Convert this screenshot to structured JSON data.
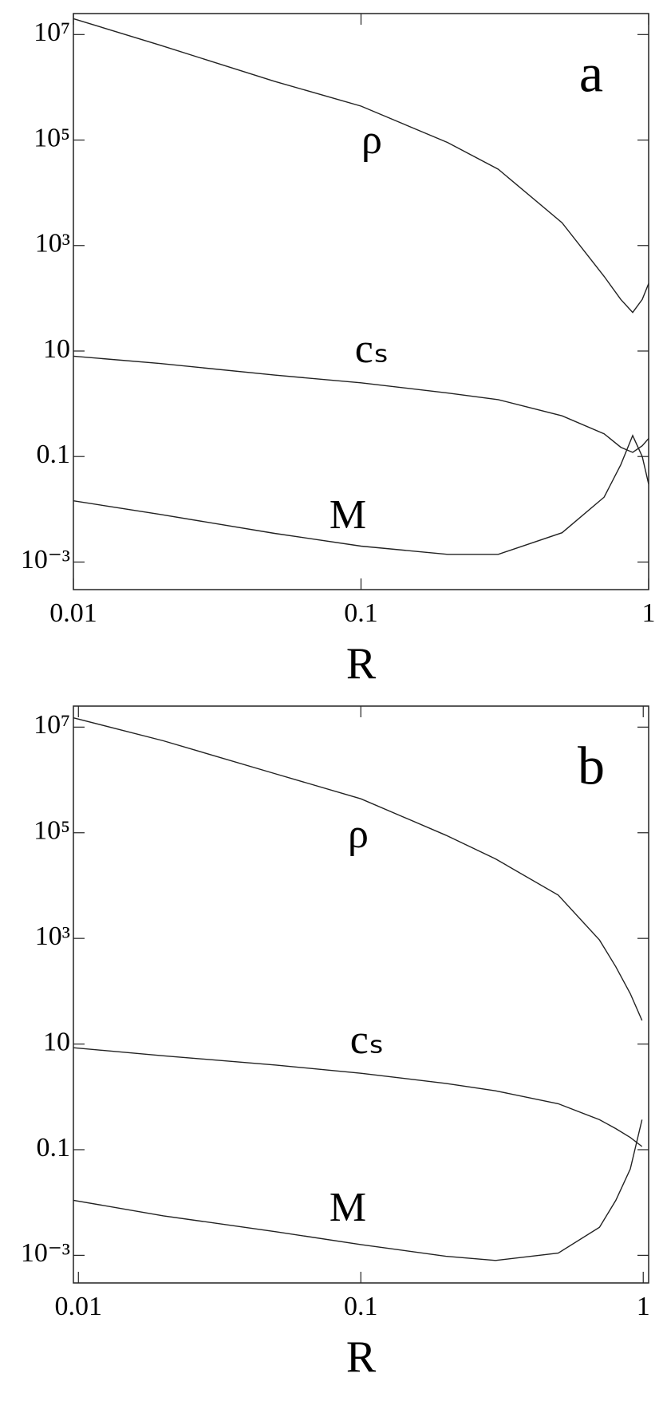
{
  "chart_data": [
    {
      "type": "line",
      "panel_label": "a",
      "x_label": "R",
      "xscale": "log",
      "yscale": "log",
      "xlim": [
        0.01,
        1
      ],
      "ylim": [
        0.0003,
        25000000
      ],
      "xticks": [
        0.01,
        0.1,
        1
      ],
      "yticks": [
        {
          "value": 10000000,
          "label": "10⁷"
        },
        {
          "value": 100000,
          "label": "10⁵"
        },
        {
          "value": 1000,
          "label": "10³"
        },
        10,
        0.1,
        {
          "value": 0.001,
          "label": "10⁻³"
        }
      ],
      "x": [
        0.01,
        0.02,
        0.05,
        0.1,
        0.2,
        0.3,
        0.5,
        0.7,
        0.8,
        0.88,
        0.95,
        1
      ],
      "series": [
        {
          "name": "ρ",
          "color": "#222222",
          "values": [
            20000000,
            6300000,
            1300000,
            440000,
            90000,
            28000,
            2700,
            260,
            95,
            54,
            95,
            190
          ]
        },
        {
          "name": "cₛ",
          "color": "#222222",
          "values": [
            8,
            5.8,
            3.5,
            2.5,
            1.6,
            1.2,
            0.59,
            0.27,
            0.15,
            0.12,
            0.16,
            0.22
          ]
        },
        {
          "name": "M",
          "color": "#222222",
          "values": [
            0.0145,
            0.008,
            0.0035,
            0.002,
            0.0014,
            0.0014,
            0.0036,
            0.017,
            0.07,
            0.25,
            0.1,
            0.03
          ]
        }
      ]
    },
    {
      "type": "line",
      "panel_label": "b",
      "x_label": "R",
      "xscale": "log",
      "yscale": "log",
      "xlim": [
        0.0096,
        1.045
      ],
      "ylim": [
        0.0003,
        25000000
      ],
      "xticks": [
        0.01,
        0.1,
        1
      ],
      "yticks": [
        {
          "value": 10000000,
          "label": "10⁷"
        },
        {
          "value": 100000,
          "label": "10⁵"
        },
        {
          "value": 1000,
          "label": "10³"
        },
        10,
        0.1,
        {
          "value": 0.001,
          "label": "10⁻³"
        }
      ],
      "x": [
        0.0096,
        0.02,
        0.05,
        0.1,
        0.2,
        0.3,
        0.5,
        0.7,
        0.8,
        0.9,
        0.99
      ],
      "series": [
        {
          "name": "ρ",
          "color": "#222222",
          "values": [
            15000000,
            5500000,
            1300000,
            440000,
            90000,
            32000,
            6600,
            930,
            290,
            90,
            28
          ]
        },
        {
          "name": "cₛ",
          "color": "#222222",
          "values": [
            8.5,
            6,
            4,
            2.8,
            1.8,
            1.3,
            0.74,
            0.37,
            0.25,
            0.17,
            0.115
          ]
        },
        {
          "name": "M",
          "color": "#222222",
          "values": [
            0.011,
            0.0056,
            0.0028,
            0.0016,
            0.00096,
            0.0008,
            0.0011,
            0.0034,
            0.011,
            0.043,
            0.37
          ]
        }
      ]
    }
  ]
}
